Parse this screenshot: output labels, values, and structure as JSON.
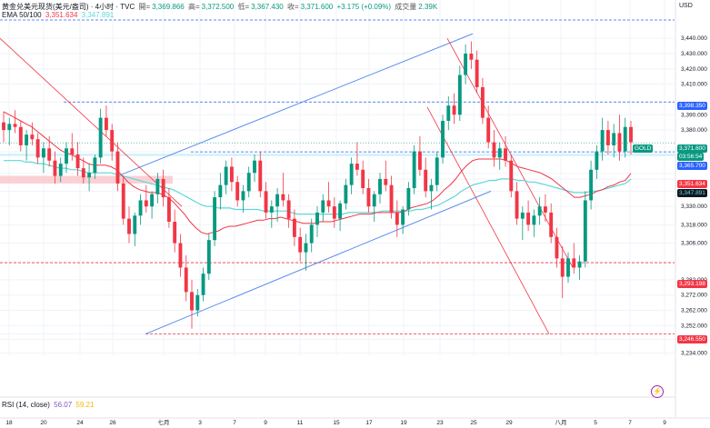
{
  "header": {
    "symbol": "黄金兑美元现货(美元/盎司) · 4小时 · TVC",
    "open_label": "開=",
    "open": "3,369.866",
    "high_label": "高=",
    "high": "3,372.500",
    "low_label": "低=",
    "low": "3,367.430",
    "close_label": "收=",
    "close": "3,371.600",
    "change": "+3.175 (+0.09%)",
    "volume_label": "成交量",
    "volume": "2.39K"
  },
  "ema": {
    "label": "EMA 50/100",
    "value1": "3,351.634",
    "value2": "3,347.891"
  },
  "rsi": {
    "label": "RSI (14, close)",
    "value1": "56.07",
    "value2": "59.21"
  },
  "currency_button": "USD",
  "price_tags": {
    "gold_label": "GOLD",
    "current_price": "3,371.600",
    "countdown": "03:56:54",
    "line_3365": "3,365.700",
    "line_3398": "3,398.350",
    "ema1": "3,351.634",
    "ema2": "3,347.891",
    "line_3293": "3,293.198",
    "line_3246": "3,246.550"
  },
  "colors": {
    "up": "#089981",
    "down": "#f23645",
    "ema_fast": "#f23645",
    "ema_slow": "#5fd7d7",
    "channel_blue": "#5b8def",
    "trend_red": "#f23645",
    "dash_blue": "#2962ff",
    "dash_red": "#f23645"
  },
  "chart_data": {
    "type": "candlestick",
    "title": "黄金兑美元现货(美元/盎司) · 4小时 · TVC",
    "y_ticks": [
      3440.0,
      3430.0,
      3420.0,
      3410.0,
      3398.35,
      3390.0,
      3380.0,
      3365.7,
      3351.634,
      3347.891,
      3340.0,
      3330.0,
      3318.0,
      3306.0,
      3293.198,
      3282.0,
      3272.0,
      3262.0,
      3252.0,
      3246.55,
      3243.0,
      3234.0
    ],
    "y_tick_labels": [
      "3,440.000",
      "3,430.000",
      "3,420.000",
      "3,410.000",
      "3,398.350",
      "3,390.000",
      "3,380.000",
      "3,365.700",
      "3,351.634",
      "3,347.891",
      "3,340.000",
      "3,330.000",
      "3,318.000",
      "3,306.000",
      "3,293.198",
      "3,282.000",
      "3,272.000",
      "3,262.000",
      "3,252.000",
      "3,246.550",
      "3,243.000",
      "3,234.000"
    ],
    "x_labels": [
      "18",
      "20",
      "24",
      "26",
      "七月",
      "3",
      "7",
      "9",
      "11",
      "15",
      "17",
      "19",
      "23",
      "25",
      "29",
      "八月",
      "5",
      "7",
      "9"
    ],
    "horizontal_levels": [
      3398.35,
      3365.7,
      3293.198,
      3246.55
    ],
    "candles_ohlc": [
      [
        3385,
        3392,
        3372,
        3380
      ],
      [
        3380,
        3388,
        3370,
        3384
      ],
      [
        3384,
        3393,
        3378,
        3382
      ],
      [
        3382,
        3386,
        3366,
        3370
      ],
      [
        3370,
        3380,
        3360,
        3377
      ],
      [
        3377,
        3385,
        3370,
        3374
      ],
      [
        3374,
        3378,
        3358,
        3362
      ],
      [
        3362,
        3372,
        3352,
        3368
      ],
      [
        3368,
        3376,
        3356,
        3360
      ],
      [
        3360,
        3366,
        3345,
        3350
      ],
      [
        3350,
        3362,
        3346,
        3358
      ],
      [
        3358,
        3372,
        3352,
        3368
      ],
      [
        3368,
        3378,
        3360,
        3364
      ],
      [
        3364,
        3372,
        3350,
        3355
      ],
      [
        3355,
        3362,
        3345,
        3349
      ],
      [
        3349,
        3358,
        3340,
        3352
      ],
      [
        3352,
        3364,
        3348,
        3362
      ],
      [
        3362,
        3394,
        3358,
        3388
      ],
      [
        3388,
        3396,
        3376,
        3380
      ],
      [
        3380,
        3384,
        3360,
        3366
      ],
      [
        3366,
        3372,
        3340,
        3345
      ],
      [
        3345,
        3350,
        3318,
        3322
      ],
      [
        3322,
        3330,
        3306,
        3312
      ],
      [
        3312,
        3326,
        3304,
        3324
      ],
      [
        3324,
        3338,
        3318,
        3334
      ],
      [
        3334,
        3344,
        3326,
        3330
      ],
      [
        3330,
        3340,
        3322,
        3338
      ],
      [
        3338,
        3352,
        3332,
        3348
      ],
      [
        3348,
        3354,
        3330,
        3336
      ],
      [
        3336,
        3342,
        3316,
        3320
      ],
      [
        3320,
        3328,
        3300,
        3306
      ],
      [
        3306,
        3312,
        3284,
        3290
      ],
      [
        3290,
        3298,
        3268,
        3274
      ],
      [
        3274,
        3282,
        3250,
        3262
      ],
      [
        3262,
        3276,
        3258,
        3272
      ],
      [
        3272,
        3290,
        3268,
        3286
      ],
      [
        3286,
        3312,
        3282,
        3308
      ],
      [
        3308,
        3340,
        3304,
        3336
      ],
      [
        3336,
        3352,
        3328,
        3344
      ],
      [
        3344,
        3360,
        3338,
        3356
      ],
      [
        3356,
        3362,
        3340,
        3346
      ],
      [
        3346,
        3350,
        3330,
        3334
      ],
      [
        3334,
        3344,
        3326,
        3340
      ],
      [
        3340,
        3356,
        3336,
        3352
      ],
      [
        3352,
        3364,
        3346,
        3360
      ],
      [
        3360,
        3366,
        3336,
        3340
      ],
      [
        3340,
        3346,
        3322,
        3326
      ],
      [
        3326,
        3334,
        3316,
        3330
      ],
      [
        3330,
        3342,
        3320,
        3338
      ],
      [
        3338,
        3352,
        3330,
        3334
      ],
      [
        3334,
        3338,
        3316,
        3322
      ],
      [
        3322,
        3328,
        3304,
        3310
      ],
      [
        3310,
        3316,
        3294,
        3300
      ],
      [
        3300,
        3312,
        3288,
        3306
      ],
      [
        3306,
        3322,
        3300,
        3318
      ],
      [
        3318,
        3330,
        3310,
        3326
      ],
      [
        3326,
        3338,
        3320,
        3334
      ],
      [
        3334,
        3346,
        3326,
        3330
      ],
      [
        3330,
        3336,
        3316,
        3322
      ],
      [
        3322,
        3334,
        3314,
        3332
      ],
      [
        3332,
        3348,
        3328,
        3344
      ],
      [
        3344,
        3362,
        3338,
        3358
      ],
      [
        3358,
        3372,
        3350,
        3354
      ],
      [
        3354,
        3360,
        3338,
        3342
      ],
      [
        3342,
        3348,
        3326,
        3330
      ],
      [
        3330,
        3340,
        3320,
        3338
      ],
      [
        3338,
        3352,
        3332,
        3348
      ],
      [
        3348,
        3360,
        3340,
        3344
      ],
      [
        3344,
        3350,
        3322,
        3326
      ],
      [
        3326,
        3334,
        3310,
        3318
      ],
      [
        3318,
        3330,
        3312,
        3328
      ],
      [
        3328,
        3346,
        3324,
        3342
      ],
      [
        3342,
        3370,
        3338,
        3366
      ],
      [
        3366,
        3376,
        3350,
        3354
      ],
      [
        3354,
        3362,
        3336,
        3340
      ],
      [
        3340,
        3348,
        3328,
        3344
      ],
      [
        3344,
        3366,
        3340,
        3362
      ],
      [
        3362,
        3390,
        3358,
        3386
      ],
      [
        3386,
        3402,
        3380,
        3396
      ],
      [
        3396,
        3404,
        3384,
        3390
      ],
      [
        3390,
        3422,
        3386,
        3416
      ],
      [
        3416,
        3436,
        3410,
        3430
      ],
      [
        3430,
        3438,
        3420,
        3426
      ],
      [
        3426,
        3432,
        3404,
        3408
      ],
      [
        3408,
        3414,
        3384,
        3388
      ],
      [
        3388,
        3396,
        3368,
        3372
      ],
      [
        3372,
        3380,
        3356,
        3362
      ],
      [
        3362,
        3372,
        3354,
        3368
      ],
      [
        3368,
        3376,
        3356,
        3360
      ],
      [
        3360,
        3364,
        3336,
        3340
      ],
      [
        3340,
        3346,
        3318,
        3322
      ],
      [
        3322,
        3330,
        3308,
        3326
      ],
      [
        3326,
        3334,
        3314,
        3318
      ],
      [
        3318,
        3328,
        3310,
        3324
      ],
      [
        3324,
        3336,
        3318,
        3330
      ],
      [
        3330,
        3338,
        3320,
        3326
      ],
      [
        3326,
        3332,
        3306,
        3310
      ],
      [
        3310,
        3316,
        3290,
        3296
      ],
      [
        3296,
        3304,
        3270,
        3284
      ],
      [
        3284,
        3300,
        3280,
        3296
      ],
      [
        3296,
        3306,
        3286,
        3290
      ],
      [
        3290,
        3298,
        3282,
        3294
      ],
      [
        3294,
        3340,
        3290,
        3334
      ],
      [
        3334,
        3360,
        3328,
        3354
      ],
      [
        3354,
        3370,
        3348,
        3366
      ],
      [
        3366,
        3388,
        3360,
        3380
      ],
      [
        3380,
        3386,
        3364,
        3370
      ],
      [
        3370,
        3384,
        3362,
        3378
      ],
      [
        3378,
        3390,
        3360,
        3366
      ],
      [
        3366,
        3388,
        3362,
        3382
      ],
      [
        3382,
        3386,
        3364,
        3372
      ]
    ],
    "ema_fast_values": [
      3392,
      3390,
      3388,
      3386,
      3384,
      3382,
      3379,
      3376,
      3373,
      3370,
      3367,
      3365,
      3364,
      3362,
      3360,
      3358,
      3357,
      3357,
      3357,
      3356,
      3354,
      3350,
      3346,
      3343,
      3341,
      3340,
      3339,
      3339,
      3338,
      3336,
      3333,
      3329,
      3325,
      3320,
      3316,
      3313,
      3312,
      3313,
      3314,
      3316,
      3317,
      3317,
      3318,
      3319,
      3320,
      3321,
      3321,
      3322,
      3322,
      3323,
      3322,
      3321,
      3320,
      3319,
      3319,
      3319,
      3320,
      3320,
      3320,
      3321,
      3322,
      3323,
      3324,
      3325,
      3325,
      3325,
      3326,
      3326,
      3326,
      3326,
      3326,
      3327,
      3329,
      3330,
      3331,
      3332,
      3334,
      3337,
      3341,
      3344,
      3348,
      3353,
      3357,
      3360,
      3361,
      3361,
      3361,
      3361,
      3361,
      3360,
      3358,
      3356,
      3355,
      3354,
      3353,
      3352,
      3350,
      3348,
      3345,
      3342,
      3339,
      3336,
      3336,
      3337,
      3338,
      3340,
      3341,
      3343,
      3344,
      3346,
      3347,
      3351.634
    ],
    "ema_slow_values": [
      3360,
      3360,
      3360,
      3360,
      3359,
      3359,
      3358,
      3358,
      3357,
      3356,
      3355,
      3355,
      3354,
      3354,
      3353,
      3352,
      3352,
      3352,
      3352,
      3352,
      3351,
      3350,
      3349,
      3348,
      3347,
      3346,
      3345,
      3344,
      3343,
      3342,
      3341,
      3339,
      3337,
      3335,
      3333,
      3331,
      3330,
      3330,
      3329,
      3329,
      3329,
      3328,
      3328,
      3328,
      3328,
      3328,
      3327,
      3327,
      3327,
      3327,
      3327,
      3326,
      3325,
      3325,
      3325,
      3325,
      3325,
      3325,
      3325,
      3325,
      3325,
      3326,
      3326,
      3326,
      3326,
      3326,
      3326,
      3327,
      3327,
      3327,
      3327,
      3327,
      3327,
      3328,
      3328,
      3329,
      3330,
      3331,
      3333,
      3335,
      3337,
      3340,
      3342,
      3344,
      3345,
      3346,
      3347,
      3347,
      3348,
      3348,
      3348,
      3347,
      3347,
      3346,
      3346,
      3345,
      3344,
      3343,
      3342,
      3341,
      3340,
      3339,
      3339,
      3339,
      3340,
      3340,
      3341,
      3342,
      3343,
      3344,
      3345,
      3347.891
    ],
    "y_range": [
      3232,
      3452
    ]
  }
}
